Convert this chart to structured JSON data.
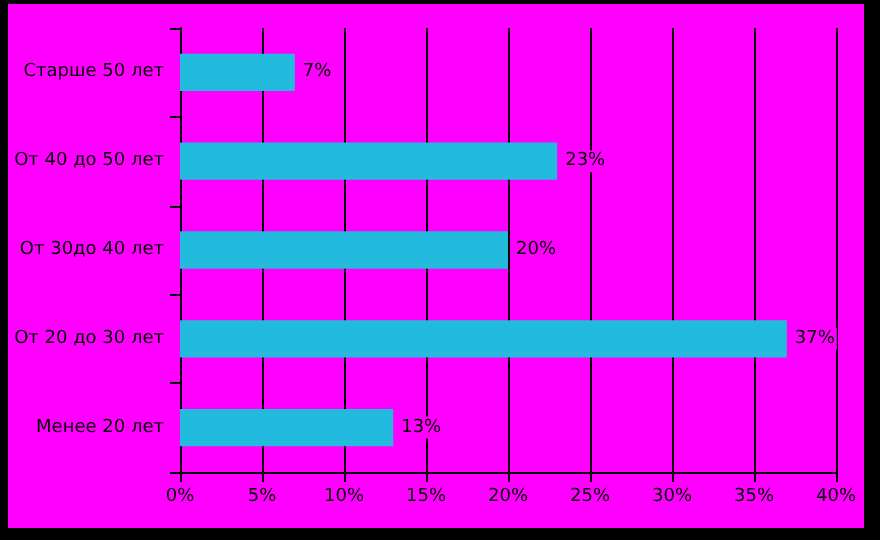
{
  "chart_data": {
    "type": "bar",
    "orientation": "horizontal",
    "categories": [
      "Старше 50 лет",
      "От 40 до 50 лет",
      "От 30до 40 лет",
      "От 20 до 30 лет",
      "Менее 20 лет"
    ],
    "values": [
      7,
      23,
      20,
      37,
      13
    ],
    "color": "#22bbdd",
    "value_labels": [
      "7%",
      "23%",
      "20%",
      "37%",
      "13%"
    ],
    "xlim": [
      0,
      40
    ],
    "xticks": [
      {
        "value": 0,
        "label": "0%"
      },
      {
        "value": 5,
        "label": "5%"
      },
      {
        "value": 10,
        "label": "10%"
      },
      {
        "value": 15,
        "label": "15%"
      },
      {
        "value": 20,
        "label": "20%"
      },
      {
        "value": 25,
        "label": "25%"
      },
      {
        "value": 30,
        "label": "30%"
      },
      {
        "value": 35,
        "label": "35%"
      },
      {
        "value": 40,
        "label": "40%"
      }
    ],
    "grid": "x"
  }
}
